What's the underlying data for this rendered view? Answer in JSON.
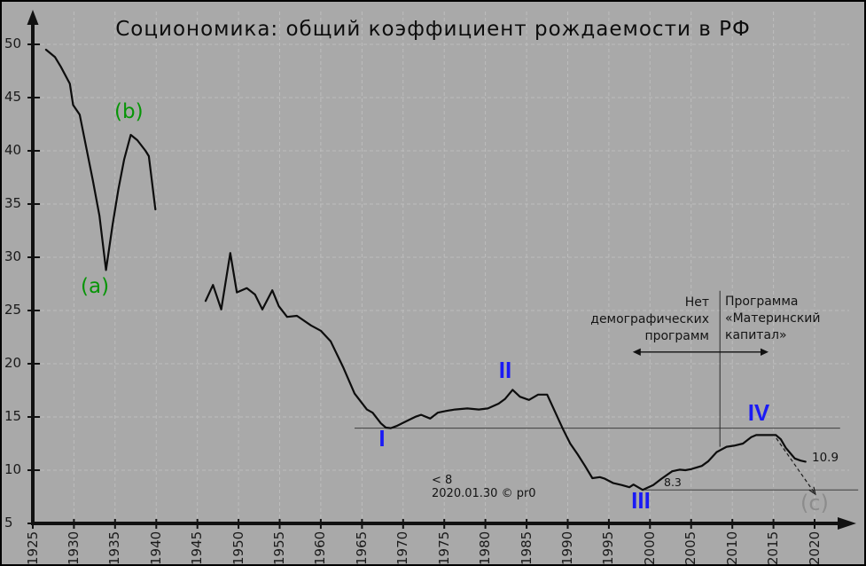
{
  "title": "Социономика: общий коэффициент рождаемости в РФ",
  "watermark": {
    "line1": "< 8",
    "line2": "2020.01.30 © pr0"
  },
  "labels": {
    "a": "(a)",
    "b": "(b)",
    "c": "(c)",
    "wave_1": "I",
    "wave_2": "II",
    "wave_3": "III",
    "wave_4": "IV",
    "low_level": "8.3",
    "end_value": "10.9"
  },
  "annotations": {
    "no_programs": {
      "lines": [
        "Нет",
        "демографических",
        "программ"
      ]
    },
    "maternity_program": {
      "lines": [
        "Программа",
        "«Материнский",
        "капитал»"
      ]
    }
  },
  "colors": {
    "background": "#a9a9a9",
    "gridline": "#bdbdbd",
    "axis": "#111111",
    "curve": "#0d0d0d",
    "wave_label_blue": "#1a1af5",
    "stage_label_green": "#079507",
    "copyright_gray": "#8c8c8c",
    "reference_line": "#3f3f3f"
  },
  "chart_data": {
    "type": "line",
    "title": "Социономика: общий коэффициент рождаемости в РФ",
    "xlabel": "",
    "ylabel": "",
    "grid": "dashed",
    "legend": "none",
    "x_axis": {
      "min": 1925,
      "max": 2020,
      "ticks": [
        1925,
        1930,
        1935,
        1940,
        1945,
        1950,
        1955,
        1960,
        1965,
        1970,
        1975,
        1980,
        1985,
        1990,
        1995,
        2000,
        2005,
        2010,
        2015,
        2020
      ]
    },
    "y_axis": {
      "min": 5,
      "max": 50,
      "ticks": [
        5,
        10,
        15,
        20,
        25,
        30,
        35,
        40,
        45,
        50
      ]
    },
    "series": [
      {
        "name": "1927-1940",
        "points": [
          [
            1926.6,
            49.5
          ],
          [
            1927.7,
            48.8
          ],
          [
            1928.4,
            47.9
          ],
          [
            1929.5,
            46.3
          ],
          [
            1929.9,
            44.3
          ],
          [
            1930.7,
            43.4
          ],
          [
            1931.6,
            39.9
          ],
          [
            1932.3,
            37.2
          ],
          [
            1933.1,
            33.9
          ],
          [
            1933.9,
            28.8
          ],
          [
            1934.7,
            33.1
          ],
          [
            1935.4,
            36.4
          ],
          [
            1936.1,
            39.2
          ],
          [
            1936.9,
            41.5
          ],
          [
            1937.7,
            41.0
          ],
          [
            1938.7,
            40.0
          ],
          [
            1939.1,
            39.5
          ],
          [
            1939.9,
            34.5
          ]
        ]
      },
      {
        "name": "1946-2019",
        "points": [
          [
            1946,
            25.9
          ],
          [
            1946.9,
            27.4
          ],
          [
            1947.9,
            25.1
          ],
          [
            1949,
            30.4
          ],
          [
            1949.8,
            26.7
          ],
          [
            1951,
            27.1
          ],
          [
            1952,
            26.5
          ],
          [
            1952.9,
            25.1
          ],
          [
            1954.1,
            26.9
          ],
          [
            1954.9,
            25.4
          ],
          [
            1955.9,
            24.4
          ],
          [
            1957.1,
            24.5
          ],
          [
            1958.8,
            23.6
          ],
          [
            1960,
            23.1
          ],
          [
            1961.2,
            22.1
          ],
          [
            1962.7,
            19.7
          ],
          [
            1964.1,
            17.2
          ],
          [
            1965.6,
            15.7
          ],
          [
            1966.3,
            15.4
          ],
          [
            1967.3,
            14.4
          ],
          [
            1967.9,
            14.0
          ],
          [
            1968.5,
            13.95
          ],
          [
            1969.2,
            14.15
          ],
          [
            1970.4,
            14.6
          ],
          [
            1971.6,
            15.05
          ],
          [
            1972.2,
            15.2
          ],
          [
            1973.3,
            14.85
          ],
          [
            1974.2,
            15.4
          ],
          [
            1975.1,
            15.55
          ],
          [
            1976.3,
            15.7
          ],
          [
            1977.8,
            15.8
          ],
          [
            1979.2,
            15.7
          ],
          [
            1980.3,
            15.8
          ],
          [
            1981.6,
            16.25
          ],
          [
            1982.4,
            16.7
          ],
          [
            1983.3,
            17.55
          ],
          [
            1984.2,
            16.9
          ],
          [
            1985.3,
            16.6
          ],
          [
            1986.4,
            17.1
          ],
          [
            1987.5,
            17.1
          ],
          [
            1989.4,
            13.9
          ],
          [
            1990.3,
            12.5
          ],
          [
            1991.2,
            11.5
          ],
          [
            1992.1,
            10.4
          ],
          [
            1993,
            9.25
          ],
          [
            1993.9,
            9.35
          ],
          [
            1994.5,
            9.2
          ],
          [
            1995.5,
            8.8
          ],
          [
            1996.6,
            8.6
          ],
          [
            1997.5,
            8.4
          ],
          [
            1998,
            8.65
          ],
          [
            1999.1,
            8.15
          ],
          [
            2000.4,
            8.6
          ],
          [
            2001.4,
            9.2
          ],
          [
            2002.7,
            9.9
          ],
          [
            2003.6,
            10.05
          ],
          [
            2004.3,
            10.0
          ],
          [
            2005,
            10.1
          ],
          [
            2006.3,
            10.4
          ],
          [
            2007.1,
            10.85
          ],
          [
            2008.1,
            11.7
          ],
          [
            2009.3,
            12.2
          ],
          [
            2010.2,
            12.3
          ],
          [
            2011.3,
            12.5
          ],
          [
            2012.3,
            13.1
          ],
          [
            2012.9,
            13.3
          ],
          [
            2015.3,
            13.3
          ],
          [
            2015.9,
            12.9
          ],
          [
            2016.5,
            12.1
          ],
          [
            2017.6,
            11.1
          ],
          [
            2018.3,
            10.9
          ],
          [
            2018.9,
            10.8
          ]
        ]
      }
    ],
    "reference_lines": [
      {
        "value": 13.95,
        "from_year": 1964.1,
        "to_year": 2023.1
      },
      {
        "value": 8.15,
        "from_year": 1999.35,
        "to_year": 2025.3,
        "label": "8.3"
      }
    ],
    "program_divider": {
      "year": 2008.5,
      "from_value": 12.2,
      "to_value": 26.85
    },
    "program_span_arrow": {
      "value": 21.1,
      "from_year": 1997.9,
      "to_year": 2014.4
    },
    "forecast_arrow": {
      "style": "dashed",
      "from": [
        2015.35,
        13.0
      ],
      "to": [
        2020.1,
        7.75
      ]
    }
  }
}
